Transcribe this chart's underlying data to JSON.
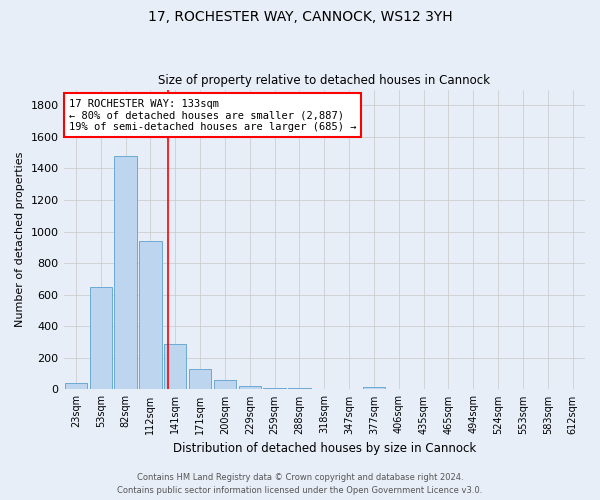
{
  "title": "17, ROCHESTER WAY, CANNOCK, WS12 3YH",
  "subtitle": "Size of property relative to detached houses in Cannock",
  "xlabel": "Distribution of detached houses by size in Cannock",
  "ylabel": "Number of detached properties",
  "footnote1": "Contains HM Land Registry data © Crown copyright and database right 2024.",
  "footnote2": "Contains public sector information licensed under the Open Government Licence v3.0.",
  "bar_labels": [
    "23sqm",
    "53sqm",
    "82sqm",
    "112sqm",
    "141sqm",
    "171sqm",
    "200sqm",
    "229sqm",
    "259sqm",
    "288sqm",
    "318sqm",
    "347sqm",
    "377sqm",
    "406sqm",
    "435sqm",
    "465sqm",
    "494sqm",
    "524sqm",
    "553sqm",
    "583sqm",
    "612sqm"
  ],
  "bar_values": [
    38,
    650,
    1480,
    940,
    290,
    130,
    62,
    22,
    12,
    8,
    5,
    3,
    18,
    2,
    0,
    0,
    0,
    0,
    0,
    0,
    0
  ],
  "bar_color": "#bdd5ee",
  "bar_edge_color": "#6aaad4",
  "background_color": "#e8eef8",
  "grid_color": "#c8c8c8",
  "annotation_text1": "17 ROCHESTER WAY: 133sqm",
  "annotation_text2": "← 80% of detached houses are smaller (2,887)",
  "annotation_text3": "19% of semi-detached houses are larger (685) →",
  "ylim": [
    0,
    1900
  ],
  "yticks": [
    0,
    200,
    400,
    600,
    800,
    1000,
    1200,
    1400,
    1600,
    1800
  ]
}
